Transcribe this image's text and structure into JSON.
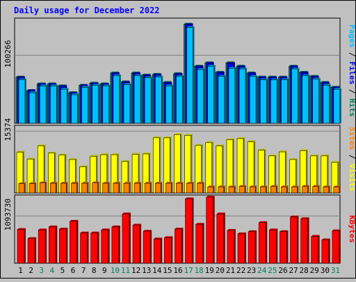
{
  "chart_data": {
    "type": "bar",
    "title": "Daily usage for December 2022",
    "categories": [
      "1",
      "2",
      "3",
      "4",
      "5",
      "6",
      "7",
      "8",
      "9",
      "10",
      "11",
      "12",
      "13",
      "14",
      "15",
      "16",
      "17",
      "18",
      "19",
      "20",
      "21",
      "22",
      "23",
      "24",
      "25",
      "26",
      "27",
      "28",
      "29",
      "30",
      "31"
    ],
    "weekend_days": [
      "3",
      "4",
      "10",
      "11",
      "17",
      "18",
      "24",
      "25",
      "31"
    ],
    "panels": [
      {
        "id": "hits",
        "y_tick_label": "100266",
        "y_tick_value": 100266,
        "ylim": [
          0,
          155000
        ],
        "right_label": {
          "parts": [
            "Pages",
            " / ",
            "Files",
            " / ",
            "Hits"
          ]
        },
        "series": [
          {
            "name": "Hits",
            "color": "#00805c",
            "values": [
              68000,
              48000,
              58000,
              58000,
              55000,
              45000,
              56000,
              59000,
              58000,
              74000,
              61000,
              74000,
              71000,
              72000,
              60000,
              73000,
              146000,
              84000,
              89000,
              75000,
              89000,
              84000,
              74000,
              68000,
              68000,
              68000,
              84000,
              75000,
              69000,
              60000,
              53000
            ]
          },
          {
            "name": "Files",
            "color": "#0000ff",
            "values": [
              67000,
              48000,
              57000,
              57000,
              54000,
              44000,
              55000,
              58000,
              57000,
              73000,
              60000,
              73000,
              70000,
              71000,
              59000,
              72000,
              145000,
              83000,
              88000,
              74000,
              88000,
              83000,
              73000,
              67000,
              67000,
              67000,
              83000,
              74000,
              68000,
              59000,
              52000
            ]
          },
          {
            "name": "Pages",
            "color": "#00c0ff",
            "values": [
              64000,
              45000,
              55000,
              55000,
              50000,
              42000,
              53000,
              56000,
              55000,
              70000,
              57000,
              70000,
              67000,
              68000,
              55000,
              69000,
              141000,
              79000,
              84000,
              69000,
              81000,
              80000,
              69000,
              64000,
              64000,
              64000,
              80000,
              70000,
              65000,
              56000,
              50000
            ]
          }
        ]
      },
      {
        "id": "visits",
        "y_tick_label": "15374",
        "y_tick_value": 15374,
        "ylim": [
          0,
          16800
        ],
        "right_label": {
          "parts": [
            "Sites",
            " / ",
            "Visits"
          ]
        },
        "series": [
          {
            "name": "Visits",
            "color": "#ffff00",
            "values": [
              10100,
              8400,
              11700,
              9900,
              9400,
              8300,
              6500,
              9100,
              9500,
              9500,
              7800,
              9600,
              9700,
              13700,
              13700,
              14500,
              14300,
              11800,
              12500,
              11700,
              13200,
              13500,
              12700,
              10600,
              9200,
              10200,
              8300,
              10500,
              9200,
              9200,
              7600
            ]
          },
          {
            "name": "Sites",
            "color": "#ff8000",
            "values": [
              2300,
              2300,
              2500,
              2400,
              2400,
              2400,
              2400,
              2500,
              2400,
              2400,
              2400,
              2400,
              2400,
              2400,
              2400,
              2400,
              2400,
              2400,
              1500,
              1500,
              1500,
              1600,
              1500,
              1500,
              1600,
              1500,
              1500,
              1600,
              1600,
              1500,
              1500
            ]
          }
        ]
      },
      {
        "id": "kbytes",
        "y_tick_label": "1093730",
        "y_tick_value": 1093730,
        "ylim": [
          0,
          1580000
        ],
        "right_label": {
          "parts": [
            "KBytes"
          ]
        },
        "series": [
          {
            "name": "KBytes",
            "color": "#ff0000",
            "values": [
              780000,
              570000,
              770000,
              840000,
              790000,
              970000,
              700000,
              700000,
              770000,
              840000,
              1140000,
              880000,
              740000,
              560000,
              590000,
              790000,
              1490000,
              900000,
              1530000,
              1140000,
              760000,
              680000,
              730000,
              940000,
              770000,
              730000,
              1070000,
              1030000,
              620000,
              540000,
              750000
            ]
          }
        ]
      }
    ]
  },
  "colors": {
    "background": "#c0c0c0",
    "plot_background": "#c0c0c0",
    "title": "#0000ff",
    "axis_text": "#000000",
    "weekend_text": "#00805c",
    "pages_label": "#00c0ff",
    "files_label": "#0000ff",
    "hits_label": "#00805c",
    "sites_label": "#ff8000",
    "visits_label": "#ffff00",
    "kbytes_label": "#ff0000",
    "separator": "#000000"
  }
}
